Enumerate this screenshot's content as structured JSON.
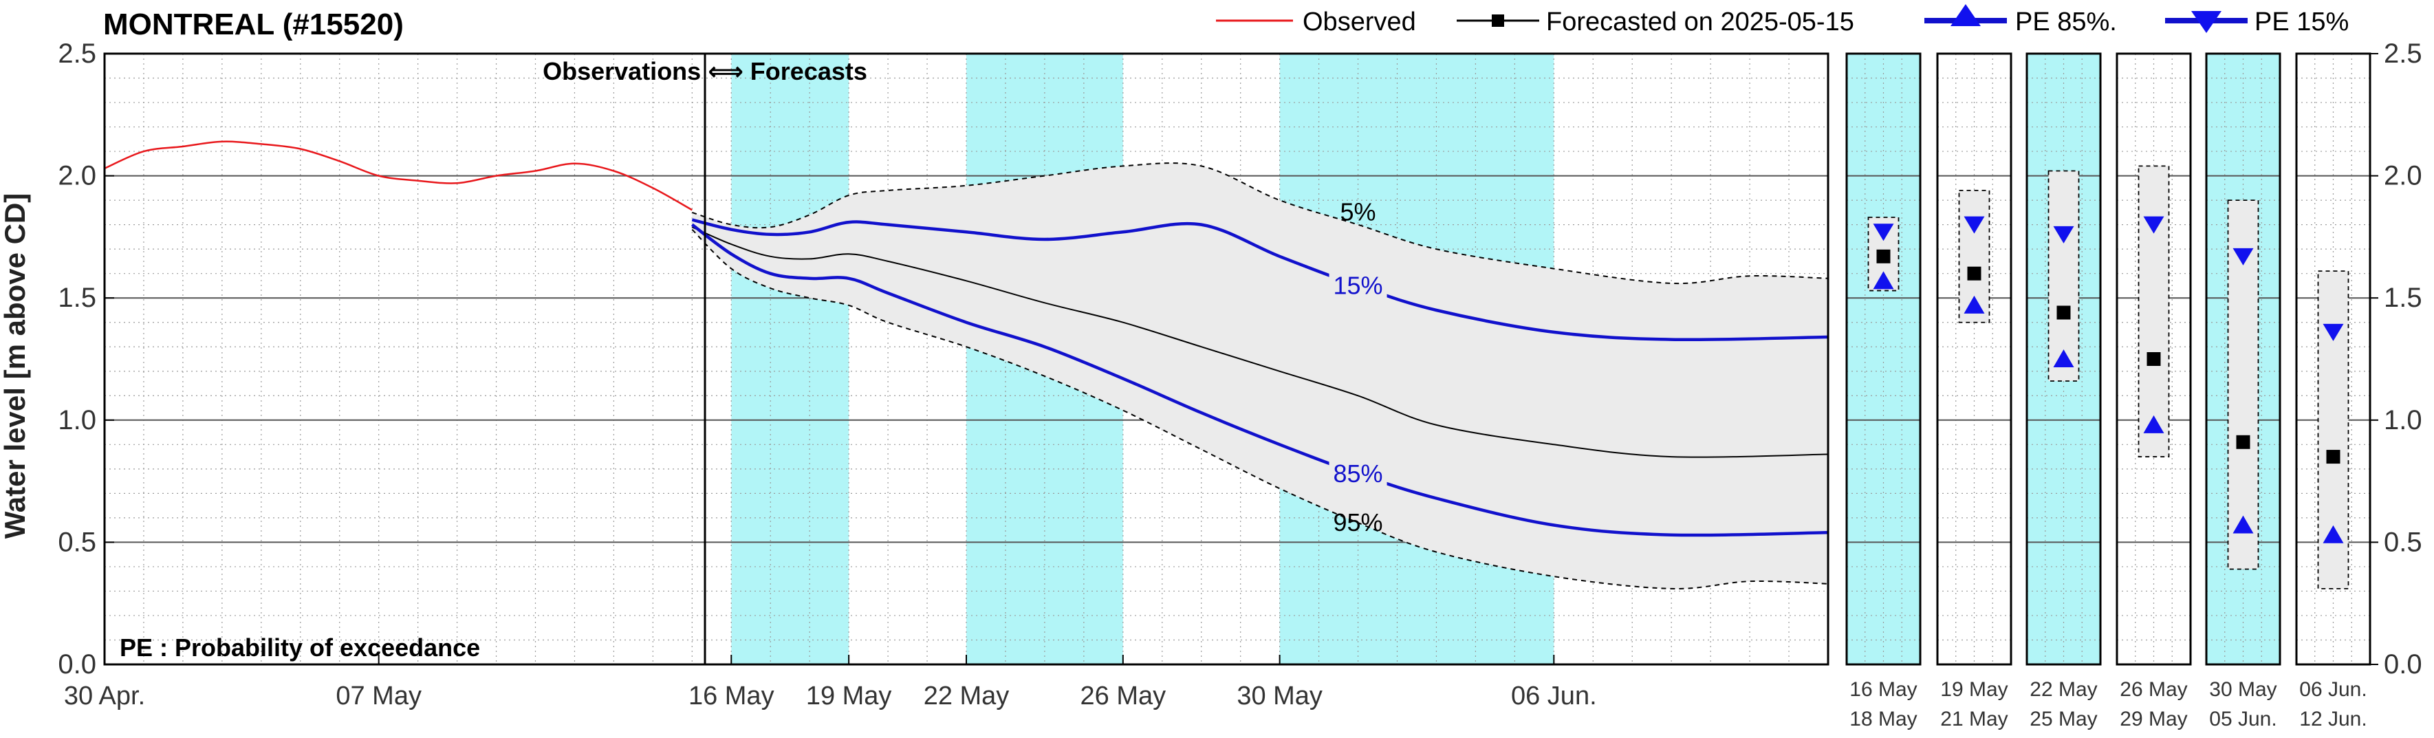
{
  "title": "MONTREAL (#15520)",
  "legend": {
    "observed": "Observed",
    "forecasted": "Forecasted on 2025-05-15",
    "pe85": "PE 85%.",
    "pe15": "PE 15%"
  },
  "annotations": {
    "obs_forecasts": "Observations ⟺ Forecasts",
    "pe_note": "PE : Probability of exceedance"
  },
  "colors": {
    "observed": "#e8171b",
    "forecast": "#000000",
    "percentile": "#1111cc",
    "band_fill": "#ebebeb",
    "period_fill": "#b2f5f7"
  },
  "chart_data": [
    {
      "type": "line",
      "ylabel": "Water level [m above CD]",
      "ylim": [
        0.0,
        2.5
      ],
      "yticks": [
        "0.0",
        "0.5",
        "1.0",
        "1.5",
        "2.0",
        "2.5"
      ],
      "xlim": [
        "2025-04-30",
        "2025-06-13"
      ],
      "xtick_labels": [
        "30 Apr.",
        "07 May",
        "16 May",
        "19 May",
        "22 May",
        "26 May",
        "30 May",
        "06 Jun."
      ],
      "grid": true,
      "shaded_periods": [
        [
          "2025-05-16",
          "2025-05-19"
        ],
        [
          "2025-05-22",
          "2025-05-26"
        ],
        [
          "2025-05-30",
          "2025-06-06"
        ]
      ],
      "series": [
        {
          "name": "Observed",
          "x": [
            "2025-04-30",
            "2025-05-01",
            "2025-05-02",
            "2025-05-03",
            "2025-05-04",
            "2025-05-05",
            "2025-05-06",
            "2025-05-07",
            "2025-05-08",
            "2025-05-09",
            "2025-05-10",
            "2025-05-11",
            "2025-05-12",
            "2025-05-13",
            "2025-05-14",
            "2025-05-15"
          ],
          "values": [
            2.03,
            2.1,
            2.12,
            2.14,
            2.13,
            2.11,
            2.06,
            2.0,
            1.98,
            1.97,
            2.0,
            2.02,
            2.05,
            2.02,
            1.95,
            1.86
          ]
        },
        {
          "name": "Forecasted on 2025-05-15",
          "x": [
            "2025-05-15",
            "2025-05-16",
            "2025-05-17",
            "2025-05-18",
            "2025-05-19",
            "2025-05-20",
            "2025-05-22",
            "2025-05-24",
            "2025-05-26",
            "2025-05-28",
            "2025-05-30",
            "2025-06-01",
            "2025-06-03",
            "2025-06-06",
            "2025-06-09",
            "2025-06-13"
          ],
          "values": [
            1.79,
            1.72,
            1.67,
            1.66,
            1.68,
            1.65,
            1.57,
            1.48,
            1.4,
            1.3,
            1.2,
            1.1,
            0.98,
            0.9,
            0.85,
            0.86
          ]
        },
        {
          "name": "PE 15%",
          "x": [
            "2025-05-15",
            "2025-05-16",
            "2025-05-17",
            "2025-05-18",
            "2025-05-19",
            "2025-05-20",
            "2025-05-22",
            "2025-05-24",
            "2025-05-26",
            "2025-05-28",
            "2025-05-30",
            "2025-06-01",
            "2025-06-03",
            "2025-06-06",
            "2025-06-09",
            "2025-06-13"
          ],
          "values": [
            1.82,
            1.78,
            1.76,
            1.77,
            1.81,
            1.8,
            1.77,
            1.74,
            1.77,
            1.8,
            1.67,
            1.55,
            1.45,
            1.36,
            1.33,
            1.34
          ]
        },
        {
          "name": "PE 85%.",
          "x": [
            "2025-05-15",
            "2025-05-16",
            "2025-05-17",
            "2025-05-18",
            "2025-05-19",
            "2025-05-20",
            "2025-05-22",
            "2025-05-24",
            "2025-05-26",
            "2025-05-28",
            "2025-05-30",
            "2025-06-01",
            "2025-06-03",
            "2025-06-06",
            "2025-06-09",
            "2025-06-13"
          ],
          "values": [
            1.8,
            1.68,
            1.6,
            1.58,
            1.58,
            1.52,
            1.4,
            1.3,
            1.17,
            1.03,
            0.9,
            0.78,
            0.68,
            0.57,
            0.53,
            0.54
          ]
        },
        {
          "name": "5%",
          "x": [
            "2025-05-15",
            "2025-05-16",
            "2025-05-17",
            "2025-05-18",
            "2025-05-19",
            "2025-05-20",
            "2025-05-22",
            "2025-05-24",
            "2025-05-26",
            "2025-05-28",
            "2025-05-30",
            "2025-06-01",
            "2025-06-03",
            "2025-06-06",
            "2025-06-09",
            "2025-06-11",
            "2025-06-13"
          ],
          "values": [
            1.85,
            1.8,
            1.79,
            1.84,
            1.92,
            1.94,
            1.96,
            2.0,
            2.04,
            2.04,
            1.9,
            1.8,
            1.7,
            1.62,
            1.56,
            1.59,
            1.58
          ]
        },
        {
          "name": "95%",
          "x": [
            "2025-05-15",
            "2025-05-16",
            "2025-05-17",
            "2025-05-18",
            "2025-05-19",
            "2025-05-20",
            "2025-05-22",
            "2025-05-24",
            "2025-05-26",
            "2025-05-28",
            "2025-05-30",
            "2025-06-01",
            "2025-06-03",
            "2025-06-06",
            "2025-06-09",
            "2025-06-11",
            "2025-06-13"
          ],
          "values": [
            1.78,
            1.62,
            1.54,
            1.5,
            1.47,
            1.4,
            1.3,
            1.18,
            1.04,
            0.88,
            0.72,
            0.58,
            0.46,
            0.36,
            0.31,
            0.34,
            0.33
          ]
        }
      ]
    },
    {
      "type": "scatter",
      "ylim": [
        0.0,
        2.5
      ],
      "yticks": [
        "0.0",
        "0.5",
        "1.0",
        "1.5",
        "2.0",
        "2.5"
      ],
      "periods": [
        {
          "label_top": "16 May",
          "label_bottom": "18 May",
          "forecast": 1.67,
          "pe15": 1.77,
          "pe85": 1.57,
          "pct5": 1.83,
          "pct95": 1.53,
          "shaded": true
        },
        {
          "label_top": "19 May",
          "label_bottom": "21 May",
          "forecast": 1.6,
          "pe15": 1.8,
          "pe85": 1.47,
          "pct5": 1.94,
          "pct95": 1.4,
          "shaded": false
        },
        {
          "label_top": "22 May",
          "label_bottom": "25 May",
          "forecast": 1.44,
          "pe15": 1.76,
          "pe85": 1.25,
          "pct5": 2.02,
          "pct95": 1.16,
          "shaded": true
        },
        {
          "label_top": "26 May",
          "label_bottom": "29 May",
          "forecast": 1.25,
          "pe15": 1.8,
          "pe85": 0.98,
          "pct5": 2.04,
          "pct95": 0.85,
          "shaded": false
        },
        {
          "label_top": "30 May",
          "label_bottom": "05 Jun.",
          "forecast": 0.91,
          "pe15": 1.67,
          "pe85": 0.57,
          "pct5": 1.9,
          "pct95": 0.39,
          "shaded": true
        },
        {
          "label_top": "06 Jun.",
          "label_bottom": "12 Jun.",
          "forecast": 0.85,
          "pe15": 1.36,
          "pe85": 0.53,
          "pct5": 1.61,
          "pct95": 0.31,
          "shaded": false
        }
      ]
    }
  ]
}
